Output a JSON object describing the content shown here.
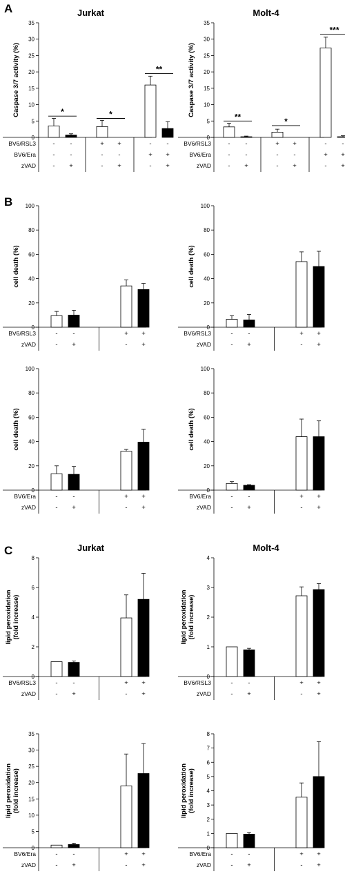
{
  "panel_labels": [
    "A",
    "B",
    "C"
  ],
  "chart_data": [
    {
      "id": "A-jurkat",
      "panel": "A",
      "type": "bar",
      "title": "Jurkat",
      "ylabel": "Caspase 3/7 activity (%)",
      "ylim": [
        0,
        35
      ],
      "yticks": [
        "0",
        "5",
        "10",
        "15",
        "20",
        "25",
        "30",
        "35"
      ],
      "categories": [
        "1",
        "2",
        "3",
        "4",
        "5",
        "6"
      ],
      "values": [
        3.5,
        0.7,
        3.3,
        0.0,
        16.0,
        2.7
      ],
      "errors": [
        2.3,
        0.4,
        1.9,
        0.0,
        2.7,
        2.1
      ],
      "fills": [
        "open",
        "solid",
        "open",
        "solid",
        "open",
        "solid"
      ],
      "rows": [
        {
          "label": "BV6/RSL3",
          "signs": [
            "-",
            "-",
            "+",
            "+",
            "-",
            "-"
          ]
        },
        {
          "label": "BV6/Era",
          "signs": [
            "-",
            "-",
            "-",
            "-",
            "+",
            "+"
          ]
        },
        {
          "label": "zVAD",
          "signs": [
            "-",
            "+",
            "-",
            "+",
            "-",
            "+"
          ]
        }
      ],
      "significance": [
        {
          "pair": [
            0,
            1
          ],
          "label": "*",
          "y": 6.5
        },
        {
          "pair": [
            2,
            3
          ],
          "label": "*",
          "y": 5.8
        },
        {
          "pair": [
            4,
            5
          ],
          "label": "**",
          "y": 19.5
        }
      ]
    },
    {
      "id": "A-molt4",
      "panel": "A",
      "type": "bar",
      "title": "Molt-4",
      "ylabel": "Caspase 3/7 activity (%)",
      "ylim": [
        0,
        35
      ],
      "yticks": [
        "0",
        "5",
        "10",
        "15",
        "20",
        "25",
        "30",
        "35"
      ],
      "categories": [
        "1",
        "2",
        "3",
        "4",
        "5",
        "6"
      ],
      "values": [
        3.2,
        0.2,
        1.6,
        0.0,
        27.3,
        0.2
      ],
      "errors": [
        1.1,
        0.2,
        0.9,
        0.0,
        3.3,
        0.3
      ],
      "fills": [
        "open",
        "solid",
        "open",
        "solid",
        "open",
        "solid"
      ],
      "rows": [
        {
          "label": "BV6/RSL3",
          "signs": [
            "-",
            "-",
            "+",
            "+",
            "-",
            "-"
          ]
        },
        {
          "label": "BV6/Era",
          "signs": [
            "-",
            "-",
            "-",
            "-",
            "+",
            "+"
          ]
        },
        {
          "label": "zVAD",
          "signs": [
            "-",
            "+",
            "-",
            "+",
            "-",
            "+"
          ]
        }
      ],
      "significance": [
        {
          "pair": [
            0,
            1
          ],
          "label": "**",
          "y": 5.0
        },
        {
          "pair": [
            2,
            3
          ],
          "label": "*",
          "y": 3.6
        },
        {
          "pair": [
            4,
            5
          ],
          "label": "***",
          "y": 31.5
        }
      ]
    },
    {
      "id": "B-rsl3-left",
      "panel": "B",
      "type": "bar",
      "title": "",
      "ylabel": "cell death (%)",
      "ylim": [
        0,
        100
      ],
      "yticks": [
        "0",
        "20",
        "40",
        "60",
        "80",
        "100"
      ],
      "categories": [
        "1",
        "2",
        "3",
        "4"
      ],
      "values": [
        9.5,
        10.0,
        34.0,
        31.0
      ],
      "errors": [
        3.5,
        4.0,
        5.0,
        5.0
      ],
      "fills": [
        "open",
        "solid",
        "open",
        "solid"
      ],
      "rows": [
        {
          "label": "BV6/RSL3",
          "signs": [
            "-",
            "-",
            "+",
            "+"
          ]
        },
        {
          "label": "zVAD",
          "signs": [
            "-",
            "+",
            "-",
            "+"
          ]
        }
      ]
    },
    {
      "id": "B-rsl3-right",
      "panel": "B",
      "type": "bar",
      "title": "",
      "ylabel": "cell death (%)",
      "ylim": [
        0,
        100
      ],
      "yticks": [
        "0",
        "20",
        "40",
        "60",
        "80",
        "100"
      ],
      "categories": [
        "1",
        "2",
        "3",
        "4"
      ],
      "values": [
        6.5,
        6.0,
        54.0,
        50.0
      ],
      "errors": [
        3.0,
        4.5,
        8.0,
        12.5
      ],
      "fills": [
        "open",
        "solid",
        "open",
        "solid"
      ],
      "rows": [
        {
          "label": "BV6/RSL3",
          "signs": [
            "-",
            "-",
            "+",
            "+"
          ]
        },
        {
          "label": "zVAD",
          "signs": [
            "-",
            "+",
            "-",
            "+"
          ]
        }
      ]
    },
    {
      "id": "B-era-left",
      "panel": "B",
      "type": "bar",
      "title": "",
      "ylabel": "cell death (%)",
      "ylim": [
        0,
        100
      ],
      "yticks": [
        "0",
        "20",
        "40",
        "60",
        "80",
        "100"
      ],
      "categories": [
        "1",
        "2",
        "3",
        "4"
      ],
      "values": [
        13.5,
        13.0,
        32.0,
        39.5
      ],
      "errors": [
        6.5,
        6.5,
        1.5,
        10.5
      ],
      "fills": [
        "open",
        "solid",
        "open",
        "solid"
      ],
      "rows": [
        {
          "label": "BV6/Era",
          "signs": [
            "-",
            "-",
            "+",
            "+"
          ]
        },
        {
          "label": "zVAD",
          "signs": [
            "-",
            "+",
            "-",
            "+"
          ]
        }
      ]
    },
    {
      "id": "B-era-right",
      "panel": "B",
      "type": "bar",
      "title": "",
      "ylabel": "cell death (%)",
      "ylim": [
        0,
        100
      ],
      "yticks": [
        "0",
        "20",
        "40",
        "60",
        "80",
        "100"
      ],
      "categories": [
        "1",
        "2",
        "3",
        "4"
      ],
      "values": [
        5.5,
        4.0,
        44.0,
        44.0
      ],
      "errors": [
        1.5,
        0.5,
        14.5,
        13.0
      ],
      "fills": [
        "open",
        "solid",
        "open",
        "solid"
      ],
      "rows": [
        {
          "label": "BV6/Era",
          "signs": [
            "-",
            "-",
            "+",
            "+"
          ]
        },
        {
          "label": "zVAD",
          "signs": [
            "-",
            "+",
            "-",
            "+"
          ]
        }
      ]
    },
    {
      "id": "C-jurkat-rsl3",
      "panel": "C",
      "type": "bar",
      "title": "Jurkat",
      "ylabel": "lipid peroxidation\n(fold increase)",
      "ylim": [
        0,
        8
      ],
      "yticks": [
        "0",
        "2",
        "4",
        "6",
        "8"
      ],
      "categories": [
        "1",
        "2",
        "3",
        "4"
      ],
      "values": [
        1.0,
        0.95,
        3.95,
        5.2
      ],
      "errors": [
        0.0,
        0.1,
        1.55,
        1.75
      ],
      "fills": [
        "open",
        "solid",
        "open",
        "solid"
      ],
      "rows": [
        {
          "label": "BV6/RSL3",
          "signs": [
            "-",
            "-",
            "+",
            "+"
          ]
        },
        {
          "label": "zVAD",
          "signs": [
            "-",
            "+",
            "-",
            "+"
          ]
        }
      ]
    },
    {
      "id": "C-molt4-rsl3",
      "panel": "C",
      "type": "bar",
      "title": "Molt-4",
      "ylabel": "lipid peroxidation\n(fold increase)",
      "ylim": [
        0,
        4
      ],
      "yticks": [
        "0",
        "1",
        "2",
        "3",
        "4"
      ],
      "categories": [
        "1",
        "2",
        "3",
        "4"
      ],
      "values": [
        1.0,
        0.9,
        2.72,
        2.93
      ],
      "errors": [
        0.0,
        0.05,
        0.3,
        0.2
      ],
      "fills": [
        "open",
        "solid",
        "open",
        "solid"
      ],
      "rows": [
        {
          "label": "BV6/RSL3",
          "signs": [
            "-",
            "-",
            "+",
            "+"
          ]
        },
        {
          "label": "zVAD",
          "signs": [
            "-",
            "+",
            "-",
            "+"
          ]
        }
      ]
    },
    {
      "id": "C-jurkat-era",
      "panel": "C",
      "type": "bar",
      "title": "",
      "ylabel": "lipid peroxidation\n(fold increase)",
      "ylim": [
        0,
        35
      ],
      "yticks": [
        "0",
        "5",
        "10",
        "15",
        "20",
        "25",
        "30",
        "35"
      ],
      "categories": [
        "1",
        "2",
        "3",
        "4"
      ],
      "values": [
        0.8,
        1.0,
        19.0,
        22.8
      ],
      "errors": [
        0.0,
        0.4,
        9.8,
        9.2
      ],
      "fills": [
        "open",
        "solid",
        "open",
        "solid"
      ],
      "rows": [
        {
          "label": "BV6/Era",
          "signs": [
            "-",
            "-",
            "+",
            "+"
          ]
        },
        {
          "label": "zVAD",
          "signs": [
            "-",
            "+",
            "-",
            "+"
          ]
        }
      ]
    },
    {
      "id": "C-molt4-era",
      "panel": "C",
      "type": "bar",
      "title": "",
      "ylabel": "lipid peroxidation\n(fold increase)",
      "ylim": [
        0,
        8
      ],
      "yticks": [
        "0",
        "1",
        "2",
        "3",
        "4",
        "5",
        "6",
        "7",
        "8"
      ],
      "categories": [
        "1",
        "2",
        "3",
        "4"
      ],
      "values": [
        1.0,
        0.95,
        3.55,
        5.0
      ],
      "errors": [
        0.0,
        0.12,
        1.0,
        2.45
      ],
      "fills": [
        "open",
        "solid",
        "open",
        "solid"
      ],
      "rows": [
        {
          "label": "BV6/Era",
          "signs": [
            "-",
            "-",
            "+",
            "+"
          ]
        },
        {
          "label": "zVAD",
          "signs": [
            "-",
            "+",
            "-",
            "+"
          ]
        }
      ]
    }
  ]
}
